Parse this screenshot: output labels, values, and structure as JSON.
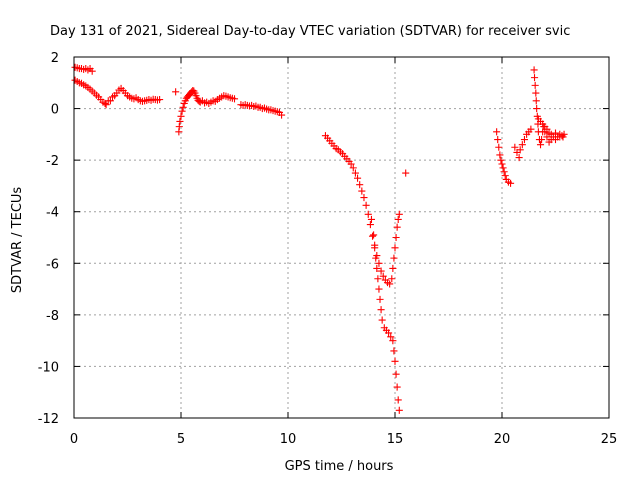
{
  "chart_data": {
    "type": "scatter",
    "title": "Day 131 of 2021, Sidereal Day-to-day VTEC variation (SDTVAR) for receiver svic",
    "xlabel": "GPS time / hours",
    "ylabel": "SDTVAR / TECUs",
    "xlim": [
      0,
      25
    ],
    "ylim": [
      -12,
      2
    ],
    "xticks": [
      0,
      5,
      10,
      15,
      20,
      25
    ],
    "yticks": [
      2,
      0,
      -2,
      -4,
      -6,
      -8,
      -10,
      -12
    ],
    "grid": true,
    "marker": "plus",
    "color": "#ff0000",
    "series": [
      {
        "points": [
          [
            0.05,
            1.6
          ],
          [
            0.15,
            1.58
          ],
          [
            0.25,
            1.55
          ],
          [
            0.35,
            1.55
          ],
          [
            0.45,
            1.52
          ],
          [
            0.55,
            1.55
          ],
          [
            0.65,
            1.5
          ],
          [
            0.75,
            1.55
          ],
          [
            0.85,
            1.45
          ],
          [
            0.05,
            1.1
          ],
          [
            0.15,
            1.05
          ],
          [
            0.25,
            1.0
          ],
          [
            0.35,
            0.98
          ],
          [
            0.45,
            0.92
          ],
          [
            0.55,
            0.88
          ],
          [
            0.65,
            0.82
          ],
          [
            0.75,
            0.75
          ],
          [
            0.85,
            0.68
          ],
          [
            0.95,
            0.6
          ],
          [
            1.05,
            0.52
          ],
          [
            1.15,
            0.45
          ],
          [
            1.25,
            0.35
          ],
          [
            1.35,
            0.25
          ],
          [
            1.45,
            0.2
          ],
          [
            1.5,
            0.15
          ],
          [
            1.6,
            0.3
          ],
          [
            1.7,
            0.3
          ],
          [
            1.8,
            0.45
          ],
          [
            1.9,
            0.5
          ],
          [
            2.0,
            0.6
          ],
          [
            2.1,
            0.72
          ],
          [
            2.2,
            0.78
          ],
          [
            2.3,
            0.7
          ],
          [
            2.4,
            0.6
          ],
          [
            2.5,
            0.5
          ],
          [
            2.6,
            0.45
          ],
          [
            2.7,
            0.4
          ],
          [
            2.8,
            0.38
          ],
          [
            2.9,
            0.42
          ],
          [
            3.0,
            0.35
          ],
          [
            3.1,
            0.3
          ],
          [
            3.2,
            0.28
          ],
          [
            3.3,
            0.3
          ],
          [
            3.4,
            0.32
          ],
          [
            3.5,
            0.35
          ],
          [
            3.6,
            0.32
          ],
          [
            3.7,
            0.36
          ],
          [
            3.8,
            0.35
          ],
          [
            3.9,
            0.33
          ],
          [
            4.0,
            0.35
          ],
          [
            4.75,
            0.65
          ],
          [
            4.9,
            -0.9
          ],
          [
            4.92,
            -0.7
          ],
          [
            4.95,
            -0.5
          ],
          [
            5.0,
            -0.3
          ],
          [
            5.05,
            -0.1
          ],
          [
            5.1,
            0.05
          ],
          [
            5.15,
            0.2
          ],
          [
            5.2,
            0.3
          ],
          [
            5.25,
            0.4
          ],
          [
            5.3,
            0.45
          ],
          [
            5.35,
            0.5
          ],
          [
            5.4,
            0.55
          ],
          [
            5.45,
            0.6
          ],
          [
            5.5,
            0.65
          ],
          [
            5.55,
            0.7
          ],
          [
            5.6,
            0.68
          ],
          [
            5.65,
            0.6
          ],
          [
            5.7,
            0.5
          ],
          [
            5.75,
            0.4
          ],
          [
            5.8,
            0.32
          ],
          [
            5.85,
            0.28
          ],
          [
            5.9,
            0.25
          ],
          [
            6.0,
            0.3
          ],
          [
            6.1,
            0.22
          ],
          [
            6.2,
            0.25
          ],
          [
            6.3,
            0.2
          ],
          [
            6.4,
            0.25
          ],
          [
            6.5,
            0.3
          ],
          [
            6.6,
            0.28
          ],
          [
            6.7,
            0.35
          ],
          [
            6.8,
            0.4
          ],
          [
            6.9,
            0.45
          ],
          [
            7.0,
            0.5
          ],
          [
            7.1,
            0.48
          ],
          [
            7.2,
            0.45
          ],
          [
            7.3,
            0.42
          ],
          [
            7.4,
            0.4
          ],
          [
            7.5,
            0.38
          ],
          [
            7.8,
            0.15
          ],
          [
            7.9,
            0.12
          ],
          [
            8.0,
            0.15
          ],
          [
            8.1,
            0.12
          ],
          [
            8.2,
            0.1
          ],
          [
            8.3,
            0.12
          ],
          [
            8.4,
            0.08
          ],
          [
            8.5,
            0.1
          ],
          [
            8.6,
            0.05
          ],
          [
            8.7,
            0.05
          ],
          [
            8.8,
            0.0
          ],
          [
            8.9,
            0.02
          ],
          [
            9.0,
            -0.02
          ],
          [
            9.1,
            -0.05
          ],
          [
            9.2,
            -0.05
          ],
          [
            9.3,
            -0.08
          ],
          [
            9.4,
            -0.1
          ],
          [
            9.5,
            -0.12
          ],
          [
            9.6,
            -0.15
          ],
          [
            9.7,
            -0.25
          ],
          [
            11.75,
            -1.05
          ],
          [
            11.85,
            -1.15
          ],
          [
            11.95,
            -1.25
          ],
          [
            12.05,
            -1.35
          ],
          [
            12.15,
            -1.45
          ],
          [
            12.25,
            -1.55
          ],
          [
            12.35,
            -1.6
          ],
          [
            12.45,
            -1.68
          ],
          [
            12.55,
            -1.75
          ],
          [
            12.65,
            -1.85
          ],
          [
            12.75,
            -1.95
          ],
          [
            12.85,
            -2.05
          ],
          [
            12.95,
            -2.15
          ],
          [
            13.05,
            -2.3
          ],
          [
            13.15,
            -2.5
          ],
          [
            13.25,
            -2.7
          ],
          [
            13.35,
            -2.95
          ],
          [
            13.45,
            -3.2
          ],
          [
            13.55,
            -3.45
          ],
          [
            13.65,
            -3.75
          ],
          [
            13.75,
            -4.1
          ],
          [
            13.85,
            -4.5
          ],
          [
            13.95,
            -4.95
          ],
          [
            14.05,
            -5.4
          ],
          [
            14.1,
            -5.8
          ],
          [
            14.15,
            -6.2
          ],
          [
            14.2,
            -6.6
          ],
          [
            14.25,
            -7.0
          ],
          [
            14.3,
            -7.4
          ],
          [
            14.35,
            -7.8
          ],
          [
            14.4,
            -8.2
          ],
          [
            14.5,
            -8.5
          ],
          [
            14.6,
            -8.6
          ],
          [
            14.7,
            -8.7
          ],
          [
            14.8,
            -8.85
          ],
          [
            14.9,
            -9.0
          ],
          [
            14.95,
            -9.4
          ],
          [
            15.0,
            -9.8
          ],
          [
            15.05,
            -10.3
          ],
          [
            15.1,
            -10.8
          ],
          [
            15.15,
            -11.3
          ],
          [
            15.2,
            -11.7
          ],
          [
            13.9,
            -4.3
          ],
          [
            14.0,
            -4.9
          ],
          [
            14.05,
            -5.3
          ],
          [
            14.15,
            -5.7
          ],
          [
            14.25,
            -6.0
          ],
          [
            14.35,
            -6.3
          ],
          [
            14.45,
            -6.5
          ],
          [
            14.55,
            -6.65
          ],
          [
            14.65,
            -6.75
          ],
          [
            14.75,
            -6.8
          ],
          [
            14.85,
            -6.6
          ],
          [
            14.9,
            -6.2
          ],
          [
            14.95,
            -5.8
          ],
          [
            15.0,
            -5.4
          ],
          [
            15.05,
            -5.0
          ],
          [
            15.1,
            -4.6
          ],
          [
            15.15,
            -4.3
          ],
          [
            15.2,
            -4.1
          ],
          [
            15.5,
            -2.5
          ],
          [
            19.75,
            -0.9
          ],
          [
            19.8,
            -1.2
          ],
          [
            19.85,
            -1.5
          ],
          [
            19.9,
            -1.8
          ],
          [
            19.95,
            -2.0
          ],
          [
            20.0,
            -2.15
          ],
          [
            20.05,
            -2.3
          ],
          [
            20.1,
            -2.45
          ],
          [
            20.15,
            -2.6
          ],
          [
            20.2,
            -2.75
          ],
          [
            20.3,
            -2.85
          ],
          [
            20.4,
            -2.9
          ],
          [
            20.6,
            -1.5
          ],
          [
            20.7,
            -1.7
          ],
          [
            20.8,
            -1.9
          ],
          [
            20.85,
            -1.6
          ],
          [
            20.95,
            -1.4
          ],
          [
            21.05,
            -1.2
          ],
          [
            21.15,
            -1.0
          ],
          [
            21.25,
            -0.9
          ],
          [
            21.35,
            -0.8
          ],
          [
            21.5,
            1.5
          ],
          [
            21.52,
            1.2
          ],
          [
            21.55,
            0.9
          ],
          [
            21.58,
            0.6
          ],
          [
            21.6,
            0.3
          ],
          [
            21.62,
            0.0
          ],
          [
            21.65,
            -0.3
          ],
          [
            21.68,
            -0.6
          ],
          [
            21.7,
            -0.9
          ],
          [
            21.75,
            -1.2
          ],
          [
            21.8,
            -1.4
          ],
          [
            21.85,
            -1.2
          ],
          [
            21.9,
            -0.9
          ],
          [
            21.95,
            -0.7
          ],
          [
            22.0,
            -0.9
          ],
          [
            22.1,
            -1.1
          ],
          [
            22.2,
            -1.3
          ],
          [
            22.3,
            -1.2
          ],
          [
            22.4,
            -1.1
          ],
          [
            22.5,
            -1.2
          ],
          [
            22.6,
            -1.1
          ],
          [
            22.7,
            -1.0
          ],
          [
            22.8,
            -1.05
          ],
          [
            22.9,
            -1.0
          ],
          [
            21.7,
            -0.4
          ],
          [
            21.8,
            -0.5
          ],
          [
            21.9,
            -0.6
          ],
          [
            22.0,
            -0.7
          ],
          [
            22.1,
            -0.8
          ],
          [
            22.2,
            -0.95
          ],
          [
            22.3,
            -1.0
          ],
          [
            22.5,
            -0.95
          ],
          [
            22.7,
            -1.1
          ],
          [
            22.85,
            -1.1
          ]
        ]
      }
    ]
  }
}
